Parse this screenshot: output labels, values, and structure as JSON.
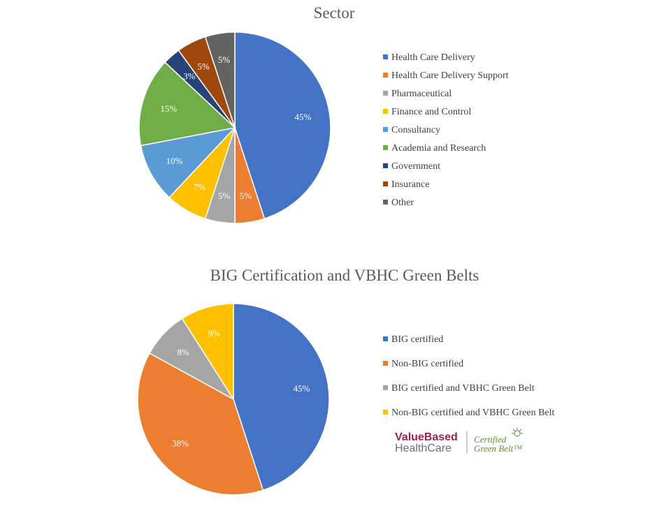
{
  "colors": {
    "blue": "#4472C4",
    "orange": "#ED7D31",
    "gray": "#A5A5A5",
    "gold": "#FFC000",
    "lightblue": "#5B9BD5",
    "green": "#70AD47",
    "navy": "#264478",
    "rust": "#9E480E",
    "darkgray": "#636363"
  },
  "chart_data": [
    {
      "type": "pie",
      "title": "Sector",
      "legend_position": "right",
      "categories": [
        "Health Care Delivery",
        "Health Care Delivery Support",
        "Pharmaceutical",
        "Finance and Control",
        "Consultancy",
        "Academia and Research",
        "Government",
        "Insurance",
        "Other"
      ],
      "values": [
        45,
        5,
        5,
        7,
        10,
        15,
        3,
        5,
        5
      ],
      "labels": [
        "45%",
        "5%",
        "5%",
        "7%",
        "10%",
        "15%",
        "3%",
        "5%",
        "5%"
      ],
      "colors": [
        "#4472C4",
        "#ED7D31",
        "#A5A5A5",
        "#FFC000",
        "#5B9BD5",
        "#70AD47",
        "#264478",
        "#9E480E",
        "#636363"
      ]
    },
    {
      "type": "pie",
      "title": "BIG Certification and VBHC Green Belts",
      "legend_position": "right",
      "categories": [
        "BIG certified",
        "Non-BIG certified",
        "BIG certified and VBHC Green Belt",
        "Non-BIG certified and VBHC Green Belt"
      ],
      "values": [
        45,
        38,
        8,
        9
      ],
      "labels": [
        "45%",
        "38%",
        "8%",
        "9%"
      ],
      "colors": [
        "#4472C4",
        "#ED7D31",
        "#A5A5A5",
        "#FFC000"
      ]
    }
  ],
  "logo": {
    "line1": "ValueBased",
    "line2": "HealthCare",
    "badge1": "Certified",
    "badge2": "Green Belt™"
  }
}
